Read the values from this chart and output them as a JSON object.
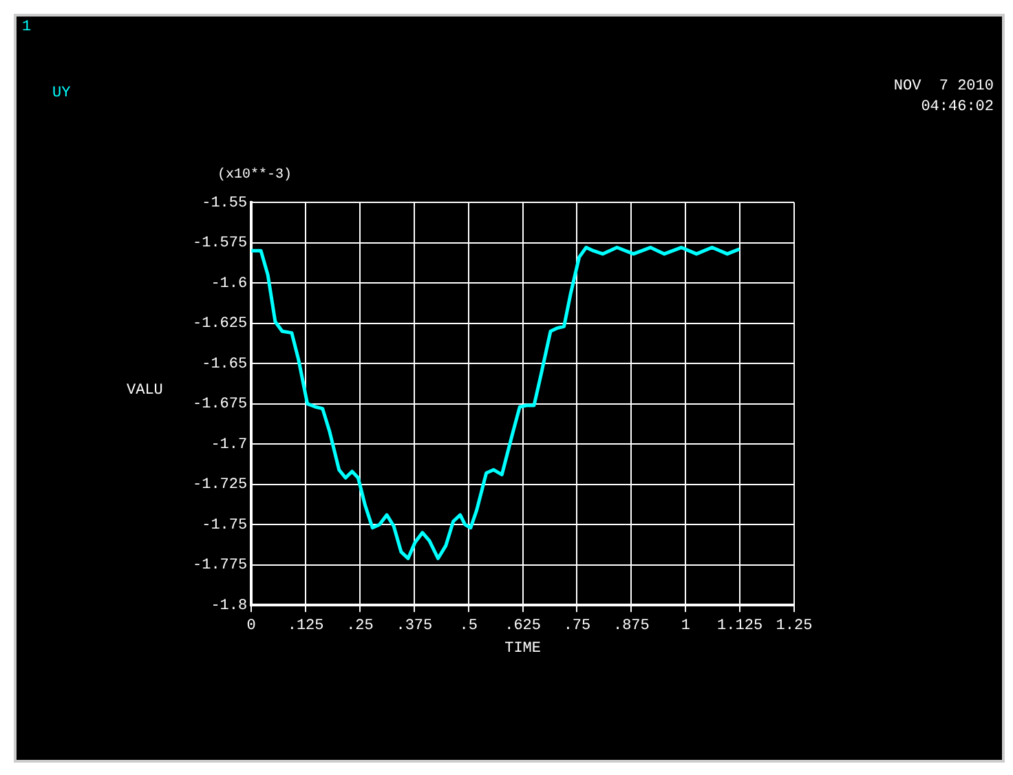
{
  "chart_data": {
    "type": "line",
    "xlabel": "TIME",
    "ylabel": "VALU",
    "annotations": [
      "1",
      "(x10**-3)",
      "NOV  7 2010",
      "04:46:02"
    ],
    "legend": "top left",
    "grid": true,
    "marker": "none",
    "line_style": "solid",
    "xlim": [
      0,
      1.25
    ],
    "xticks": [
      0,
      {
        "value": 0.125,
        "label": ".125"
      },
      {
        "value": 0.25,
        "label": ".25"
      },
      {
        "value": 0.375,
        "label": ".375"
      },
      {
        "value": 0.5,
        "label": ".5"
      },
      {
        "value": 0.625,
        "label": ".625"
      },
      {
        "value": 0.75,
        "label": ".75"
      },
      {
        "value": 0.875,
        "label": ".875"
      },
      1,
      1.125,
      1.25
    ],
    "ylim": [
      -1.8,
      -1.55
    ],
    "yticks": [
      -1.8,
      -1.775,
      -1.75,
      -1.725,
      -1.7,
      -1.675,
      -1.65,
      -1.625,
      -1.6,
      -1.575,
      -1.55
    ],
    "x": [
      0,
      0.022,
      0.038,
      0.055,
      0.071,
      0.093,
      0.109,
      0.129,
      0.148,
      0.164,
      0.18,
      0.202,
      0.217,
      0.232,
      0.246,
      0.262,
      0.279,
      0.295,
      0.312,
      0.328,
      0.345,
      0.361,
      0.377,
      0.394,
      0.41,
      0.43,
      0.448,
      0.465,
      0.481,
      0.492,
      0.505,
      0.519,
      0.541,
      0.558,
      0.577,
      0.601,
      0.618,
      0.634,
      0.651,
      0.667,
      0.689,
      0.705,
      0.72,
      0.735,
      0.755,
      0.771,
      0.787,
      0.809,
      0.842,
      0.88,
      0.919,
      0.951,
      0.99,
      1.025,
      1.061,
      1.096,
      1.124
    ],
    "series": [
      {
        "name": "UY",
        "color": "#00ffff",
        "values": [
          -1.58,
          -1.58,
          -1.595,
          -1.624,
          -1.63,
          -1.631,
          -1.648,
          -1.675,
          -1.677,
          -1.678,
          -1.692,
          -1.716,
          -1.721,
          -1.717,
          -1.721,
          -1.738,
          -1.752,
          -1.75,
          -1.744,
          -1.751,
          -1.767,
          -1.771,
          -1.761,
          -1.755,
          -1.76,
          -1.771,
          -1.763,
          -1.748,
          -1.744,
          -1.75,
          -1.752,
          -1.741,
          -1.718,
          -1.716,
          -1.719,
          -1.694,
          -1.677,
          -1.676,
          -1.676,
          -1.657,
          -1.63,
          -1.628,
          -1.627,
          -1.607,
          -1.584,
          -1.578,
          -1.58,
          -1.582,
          -1.578,
          -1.582,
          -1.578,
          -1.582,
          -1.578,
          -1.582,
          -1.578,
          -1.582,
          -1.579
        ]
      }
    ]
  }
}
